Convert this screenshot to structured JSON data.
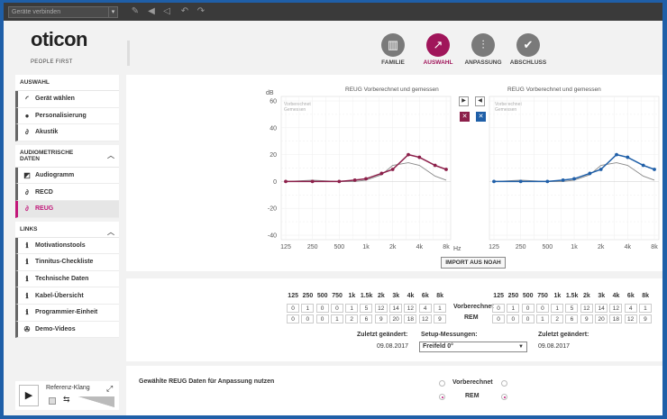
{
  "topbar": {
    "device_select": "Geräte verbinden"
  },
  "brand": {
    "logo": "oticon",
    "tagline": "PEOPLE FIRST"
  },
  "steps": [
    {
      "label": "FAMILIE",
      "icon": "family-icon"
    },
    {
      "label": "AUSWAHL",
      "icon": "selection-icon",
      "active": true
    },
    {
      "label": "ANPASSUNG",
      "icon": "adjust-icon"
    },
    {
      "label": "ABSCHLUSS",
      "icon": "checkmark-icon"
    }
  ],
  "sidebar": {
    "auswahl": {
      "title": "AUSWAHL",
      "items": [
        "Gerät wählen",
        "Personalisierung",
        "Akustik"
      ]
    },
    "audio": {
      "title": "AUDIOMETRISCHE DATEN",
      "items": [
        "Audiogramm",
        "RECD",
        "REUG"
      ]
    },
    "links": {
      "title": "LINKS",
      "items": [
        "Motivationstools",
        "Tinnitus-Checkliste",
        "Technische Daten",
        "Kabel-Übersicht",
        "Programmier-Einheit",
        "Demo-Videos"
      ]
    }
  },
  "player": {
    "label": "Referenz-Klang"
  },
  "chart": {
    "left_title": "REUG Vorberechnet und gemessen",
    "right_title": "REUG Vorberechnet und gemessen",
    "left_legend": [
      "Vorberechnet",
      "Gemessen"
    ],
    "right_legend": [
      "Vorberechnet",
      "Gemessen"
    ],
    "y_unit": "dB",
    "x_unit": "Hz",
    "import_button": "IMPORT AUS NOAH"
  },
  "chart_data": [
    {
      "type": "line",
      "title": "REUG Vorberechnet und gemessen",
      "ylabel": "dB",
      "xlabel": "Hz",
      "ylim": [
        -40,
        60
      ],
      "x": [
        "125",
        "250",
        "500",
        "750",
        "1k",
        "1.5k",
        "2k",
        "3k",
        "4k",
        "6k",
        "8k"
      ],
      "x_ticks": [
        "125",
        "250",
        "500",
        "1k",
        "2k",
        "4k",
        "8k"
      ],
      "y_ticks": [
        60,
        40,
        20,
        0,
        -20,
        -40
      ],
      "series": [
        {
          "name": "REM",
          "color": "#8c1f4a",
          "values": [
            0,
            0,
            0,
            1,
            2,
            6,
            9,
            20,
            18,
            12,
            9
          ]
        },
        {
          "name": "Vorberechnet",
          "color": "#888888",
          "values": [
            0,
            1,
            0,
            0,
            1,
            5,
            12,
            14,
            12,
            4,
            1
          ]
        }
      ]
    },
    {
      "type": "line",
      "title": "REUG Vorberechnet und gemessen",
      "xlabel": "Hz",
      "ylim": [
        -40,
        60
      ],
      "x": [
        "125",
        "250",
        "500",
        "750",
        "1k",
        "1.5k",
        "2k",
        "3k",
        "4k",
        "6k",
        "8k"
      ],
      "x_ticks": [
        "125",
        "250",
        "500",
        "1k",
        "2k",
        "4k",
        "8k"
      ],
      "series": [
        {
          "name": "REM",
          "color": "#1f5fa8",
          "values": [
            0,
            0,
            0,
            1,
            2,
            6,
            9,
            20,
            18,
            12,
            9
          ]
        },
        {
          "name": "Vorberechnet",
          "color": "#888888",
          "values": [
            0,
            1,
            0,
            0,
            1,
            5,
            12,
            14,
            12,
            4,
            1
          ]
        }
      ]
    }
  ],
  "values": {
    "freqs": [
      "125",
      "250",
      "500",
      "750",
      "1k",
      "1.5k",
      "2k",
      "3k",
      "4k",
      "6k",
      "8k"
    ],
    "left": {
      "vorberechnet": [
        0,
        1,
        0,
        0,
        1,
        5,
        12,
        14,
        12,
        4,
        1
      ],
      "rem": [
        0,
        0,
        0,
        1,
        2,
        6,
        9,
        20,
        18,
        12,
        9
      ]
    },
    "right": {
      "vorberechnet": [
        0,
        1,
        0,
        0,
        1,
        5,
        12,
        14,
        12,
        4,
        1
      ],
      "rem": [
        0,
        0,
        0,
        1,
        2,
        6,
        9,
        20,
        18,
        12,
        9
      ]
    },
    "label_vorberechnet": "Vorberechnet",
    "label_rem": "REM",
    "left_changed_label": "Zuletzt geändert:",
    "left_changed_date": "09.08.2017",
    "right_changed_label": "Zuletzt geändert:",
    "right_changed_date": "09.08.2017",
    "setup_label": "Setup-Messungen:",
    "setup_value": "Freifeld 0°"
  },
  "bottom": {
    "prompt": "Gewählte REUG Daten für Anpassung nutzen",
    "opt_vorberechnet": "Vorberechnet",
    "opt_rem": "REM"
  },
  "colors": {
    "accent": "#a0155a",
    "left": "#8c1f4a",
    "right": "#1f5fa8"
  }
}
